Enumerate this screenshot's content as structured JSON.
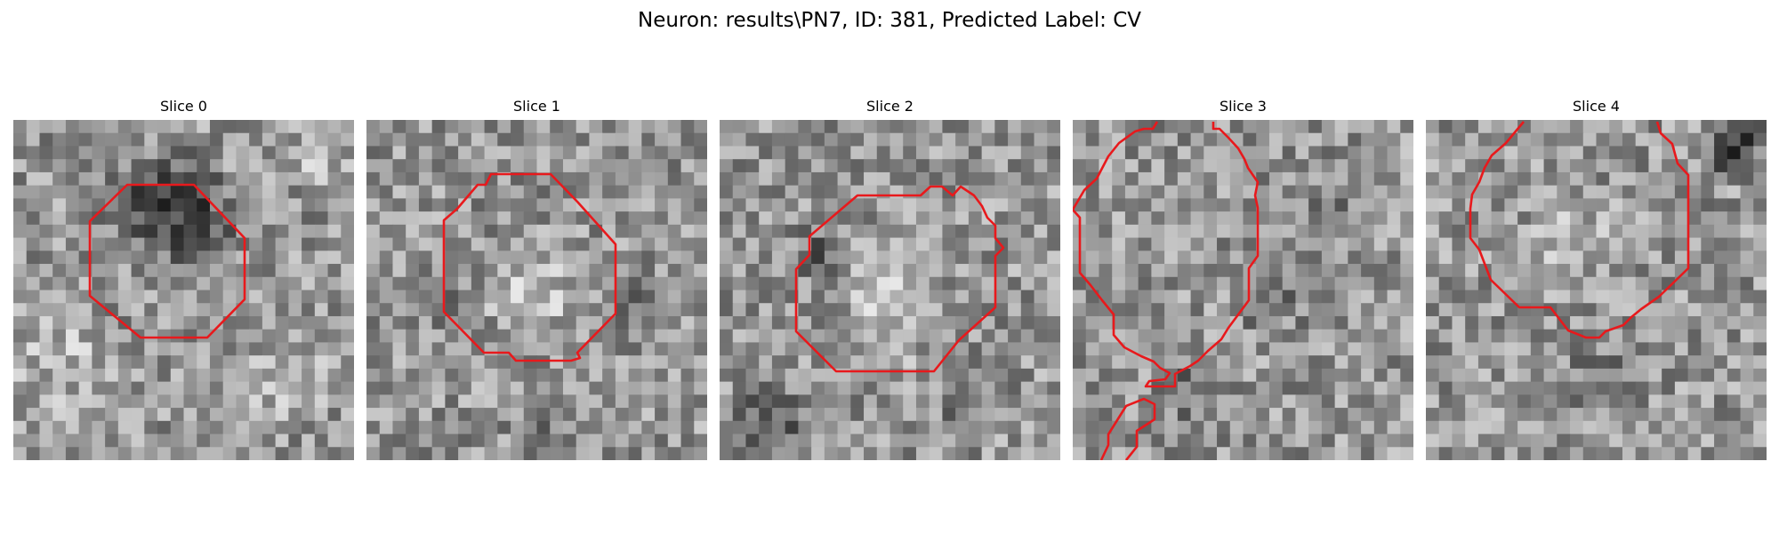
{
  "figure": {
    "title": "Neuron: results\\PN7, ID: 381, Predicted Label: CV"
  },
  "panels": [
    {
      "title": "Slice 0"
    },
    {
      "title": "Slice 1"
    },
    {
      "title": "Slice 2"
    },
    {
      "title": "Slice 3"
    },
    {
      "title": "Slice 4"
    }
  ],
  "colors": {
    "contour": "#e8191c",
    "background": "#ffffff"
  }
}
